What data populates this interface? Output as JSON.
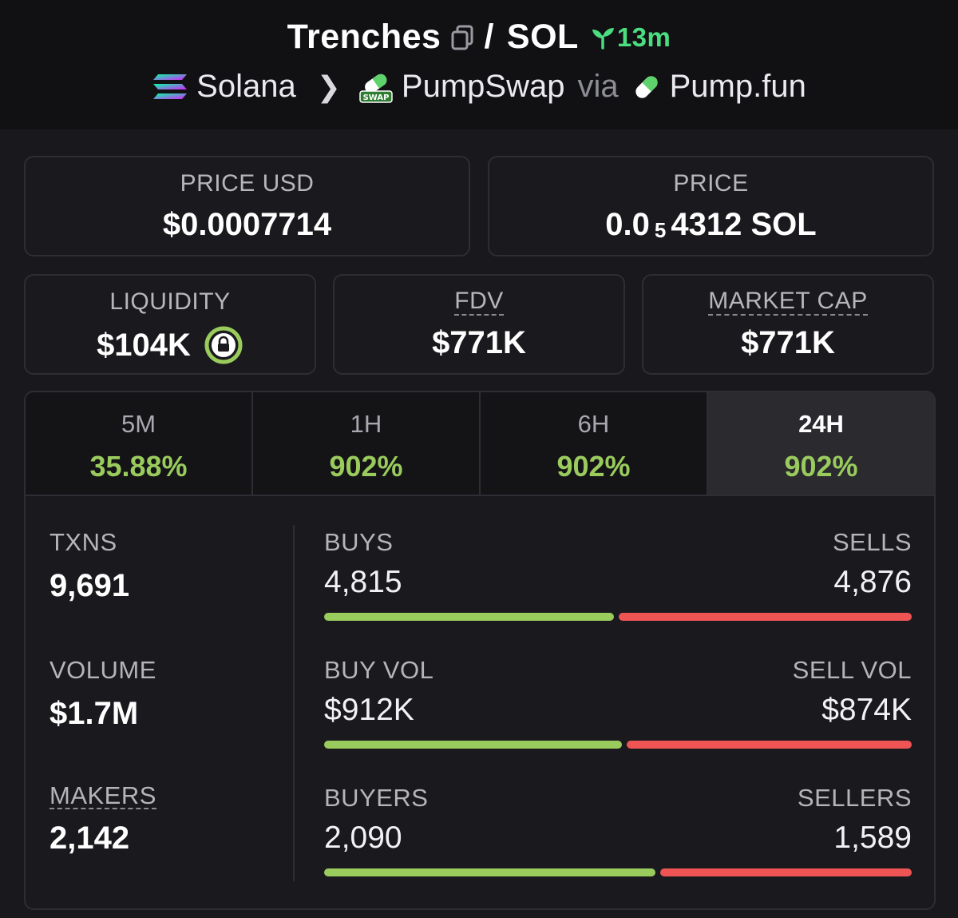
{
  "header": {
    "token": "Trenches",
    "separator": "/",
    "quote": "SOL",
    "age": "13m",
    "chain": "Solana",
    "dex": "PumpSwap",
    "via": "via",
    "launchpad": "Pump.fun",
    "icons": [
      "copy-icon",
      "sprout-icon",
      "solana-logo",
      "pumpswap-logo",
      "pumpfun-logo"
    ]
  },
  "price_usd": {
    "label": "PRICE USD",
    "value": "$0.0007714"
  },
  "price_native": {
    "label": "PRICE",
    "value_prefix": "0.0",
    "value_subscript": "5",
    "value_rest": "4312 SOL"
  },
  "liquidity": {
    "label": "LIQUIDITY",
    "value": "$104K"
  },
  "fdv": {
    "label": "FDV",
    "value": "$771K"
  },
  "market_cap": {
    "label": "MARKET CAP",
    "value": "$771K"
  },
  "timeframes": [
    {
      "label": "5M",
      "change": "35.88%"
    },
    {
      "label": "1H",
      "change": "902%"
    },
    {
      "label": "6H",
      "change": "902%"
    },
    {
      "label": "24H",
      "change": "902%",
      "selected": true
    }
  ],
  "stats": {
    "txns": {
      "label": "TXNS",
      "value": "9,691"
    },
    "volume": {
      "label": "VOLUME",
      "value": "$1.7M"
    },
    "makers": {
      "label": "MAKERS",
      "value": "2,142"
    },
    "buys": {
      "label": "BUYS",
      "value": "4,815",
      "share": 0.497
    },
    "sells": {
      "label": "SELLS",
      "value": "4,876"
    },
    "buy_vol": {
      "label": "BUY VOL",
      "value": "$912K",
      "share": 0.511
    },
    "sell_vol": {
      "label": "SELL VOL",
      "value": "$874K"
    },
    "buyers": {
      "label": "BUYERS",
      "value": "2,090",
      "share": 0.568
    },
    "sellers": {
      "label": "SELLERS",
      "value": "1,589"
    }
  },
  "colors": {
    "positive": "#9acb5d",
    "negative": "#ef5454",
    "accent": "#4ade80"
  }
}
